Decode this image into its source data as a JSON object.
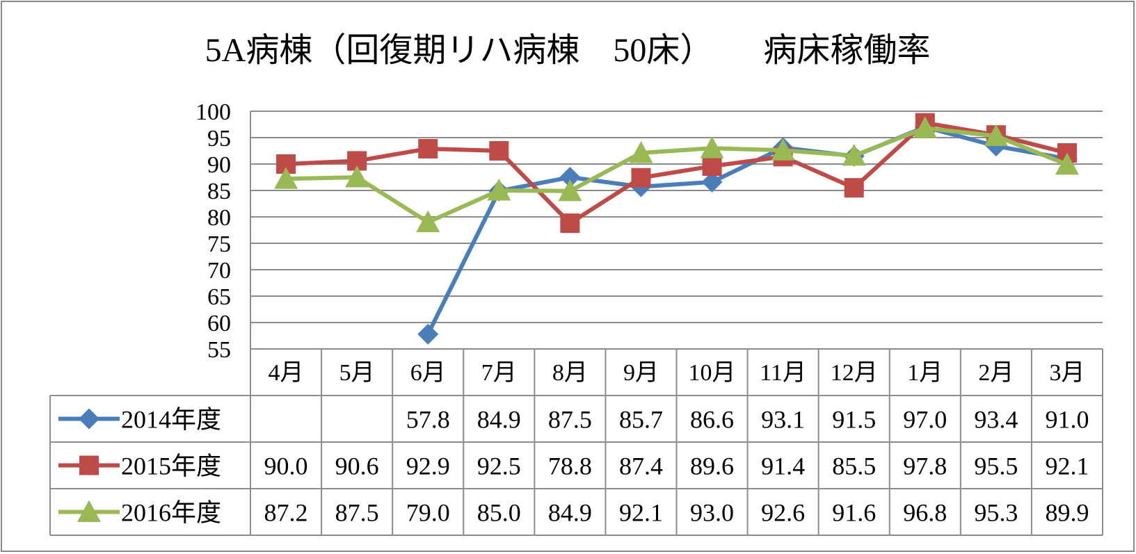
{
  "chart_data": {
    "type": "line",
    "title": "5A病棟（回復期リハ病棟　50床）　　病床稼働率",
    "xlabel": "",
    "ylabel": "",
    "ylim": [
      55,
      100
    ],
    "y_ticks": [
      "100",
      "95",
      "90",
      "85",
      "80",
      "75",
      "70",
      "65",
      "60",
      "55"
    ],
    "categories": [
      "4月",
      "5月",
      "6月",
      "7月",
      "8月",
      "9月",
      "10月",
      "11月",
      "12月",
      "1月",
      "2月",
      "3月"
    ],
    "grid": true,
    "legend": "data-table-left",
    "series": [
      {
        "name": "2014年度",
        "color": "#4a7ebb",
        "marker": "diamond",
        "values": [
          null,
          null,
          57.8,
          84.9,
          87.5,
          85.7,
          86.6,
          93.1,
          91.5,
          97.0,
          93.4,
          91.0
        ],
        "labels": [
          "",
          "",
          "57.8",
          "84.9",
          "87.5",
          "85.7",
          "86.6",
          "93.1",
          "91.5",
          "97.0",
          "93.4",
          "91.0"
        ]
      },
      {
        "name": "2015年度",
        "color": "#be4b48",
        "marker": "square",
        "values": [
          90.0,
          90.6,
          92.9,
          92.5,
          78.8,
          87.4,
          89.6,
          91.4,
          85.5,
          97.8,
          95.5,
          92.1
        ],
        "labels": [
          "90.0",
          "90.6",
          "92.9",
          "92.5",
          "78.8",
          "87.4",
          "89.6",
          "91.4",
          "85.5",
          "97.8",
          "95.5",
          "92.1"
        ]
      },
      {
        "name": "2016年度",
        "color": "#98b954",
        "marker": "triangle",
        "values": [
          87.2,
          87.5,
          79.0,
          85.0,
          84.9,
          92.1,
          93.0,
          92.6,
          91.6,
          96.8,
          95.3,
          89.9
        ],
        "labels": [
          "87.2",
          "87.5",
          "79.0",
          "85.0",
          "84.9",
          "92.1",
          "93.0",
          "92.6",
          "91.6",
          "96.8",
          "95.3",
          "89.9"
        ]
      }
    ]
  }
}
